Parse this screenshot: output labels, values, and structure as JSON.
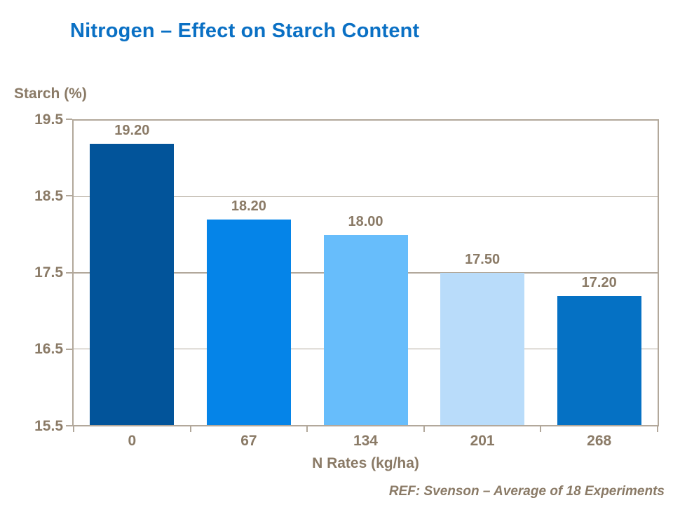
{
  "slide": {
    "title": "Nitrogen – Effect on Starch Content",
    "footer": "REF: Svenson – Average of 18 Experiments"
  },
  "chart_data": {
    "type": "bar",
    "title": "Nitrogen – Effect on Starch Content",
    "categories": [
      "0",
      "67",
      "134",
      "201",
      "268"
    ],
    "values": [
      19.2,
      18.2,
      18.0,
      17.5,
      17.2
    ],
    "value_labels": [
      "19.20",
      "18.20",
      "18.00",
      "17.50",
      "17.20"
    ],
    "xlabel": "N Rates (kg/ha)",
    "ylabel": "Starch (%)",
    "ylim": [
      15.5,
      19.5
    ],
    "yticks": [
      19.5,
      18.5,
      17.5,
      16.5,
      15.5
    ],
    "ytick_labels": [
      "19.5",
      "18.5",
      "17.5",
      "16.5",
      "15.5"
    ],
    "grid": true,
    "legend": false,
    "annotation": "REF: Svenson – Average of 18 Experiments",
    "bar_colors": [
      "#02549a",
      "#0584e8",
      "#67bdfb",
      "#b9dcfa",
      "#0571c4"
    ]
  },
  "colors": {
    "title_blue": "#0a70c4",
    "label_brown": "#8a7a66",
    "axis_tan": "#b2a89b",
    "background": "#ffffff"
  }
}
